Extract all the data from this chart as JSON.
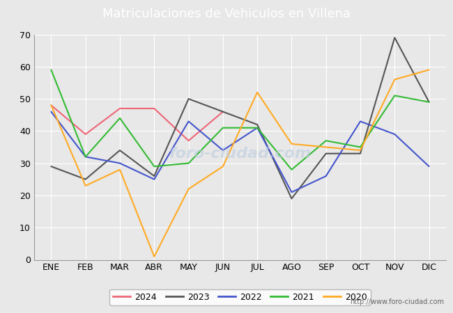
{
  "title": "Matriculaciones de Vehiculos en Villena",
  "months": [
    "ENE",
    "FEB",
    "MAR",
    "ABR",
    "MAY",
    "JUN",
    "JUL",
    "AGO",
    "SEP",
    "OCT",
    "NOV",
    "DIC"
  ],
  "series": {
    "2024": {
      "color": "#ee6677",
      "values": [
        48,
        39,
        47,
        47,
        37,
        46,
        null,
        null,
        null,
        null,
        null,
        null
      ]
    },
    "2023": {
      "color": "#555555",
      "values": [
        29,
        25,
        34,
        26,
        50,
        46,
        42,
        19,
        33,
        33,
        69,
        49
      ]
    },
    "2022": {
      "color": "#4455cc",
      "values": [
        46,
        32,
        30,
        25,
        43,
        34,
        41,
        21,
        26,
        43,
        39,
        29
      ]
    },
    "2021": {
      "color": "#33bb33",
      "values": [
        59,
        32,
        44,
        29,
        30,
        41,
        41,
        28,
        37,
        35,
        51,
        49
      ]
    },
    "2020": {
      "color": "#ffaa22",
      "values": [
        48,
        23,
        28,
        1,
        22,
        29,
        52,
        36,
        35,
        34,
        56,
        59
      ]
    }
  },
  "ylim": [
    0,
    70
  ],
  "yticks": [
    0,
    10,
    20,
    30,
    40,
    50,
    60,
    70
  ],
  "header_bg": "#5566bb",
  "plot_bg": "#e8e8e8",
  "grid_color": "#ffffff",
  "url_text": "http://www.foro-ciudad.com",
  "legend_years": [
    "2024",
    "2023",
    "2022",
    "2021",
    "2020"
  ],
  "title_fontsize": 13,
  "tick_fontsize": 9,
  "legend_fontsize": 9,
  "line_width": 1.5
}
